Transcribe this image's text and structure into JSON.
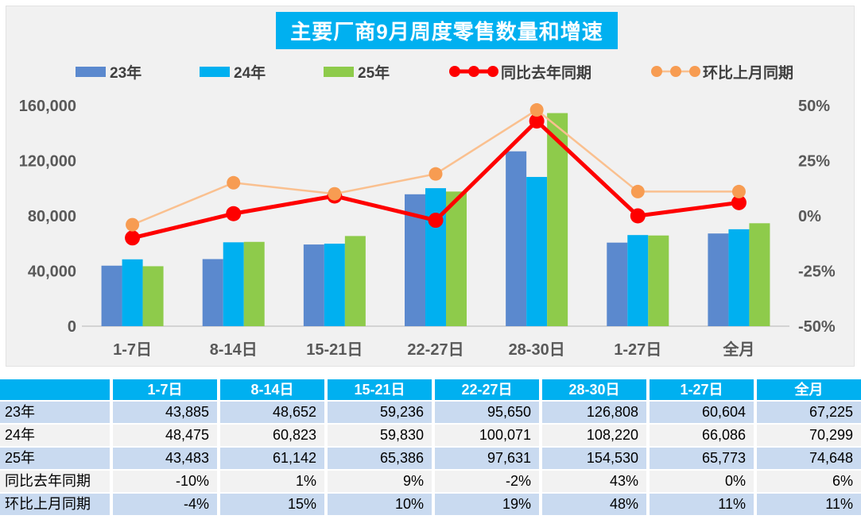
{
  "chart": {
    "title": "主要厂商9月周度零售数量和增速",
    "panel_bg": "#f1f1f1",
    "title_bg": "#00b0f0"
  },
  "chart_data": {
    "type": "bar",
    "title": "主要厂商9月周度零售数量和增速",
    "categories": [
      "1-7日",
      "8-14日",
      "15-21日",
      "22-27日",
      "28-30日",
      "1-27日",
      "全月"
    ],
    "bar_series": [
      {
        "name": "23年",
        "color": "#5b89ce",
        "values": [
          43885,
          48652,
          59236,
          95650,
          126808,
          60604,
          67225
        ]
      },
      {
        "name": "24年",
        "color": "#00b0f0",
        "values": [
          48475,
          60823,
          59830,
          100071,
          108220,
          66086,
          70299
        ]
      },
      {
        "name": "25年",
        "color": "#8ecb4b",
        "values": [
          43483,
          61142,
          65386,
          97631,
          154530,
          65773,
          74648
        ]
      }
    ],
    "line_series": [
      {
        "name": "同比去年同期",
        "color": "#fe0000",
        "marker_color": "#fe0000",
        "width": 5,
        "marker_r": 9.5,
        "values_pct": [
          -10,
          1,
          9,
          -2,
          43,
          0,
          6
        ]
      },
      {
        "name": "环比上月同期",
        "color": "#fac08f",
        "marker_color": "#f79c52",
        "width": 2.5,
        "marker_r": 8.5,
        "values_pct": [
          -4,
          15,
          10,
          19,
          48,
          11,
          11
        ]
      }
    ],
    "left_axis": {
      "max": 160000,
      "ticks": [
        0,
        40000,
        80000,
        120000,
        160000
      ],
      "labels": [
        "0",
        "40,000",
        "80,000",
        "120,000",
        "160,000"
      ]
    },
    "right_axis": {
      "ticks": [
        -50,
        -25,
        0,
        25,
        50
      ],
      "labels": [
        "-50%",
        "-25%",
        "0%",
        "25%",
        "50%"
      ]
    },
    "grid": false,
    "legend_position": "top"
  },
  "table": {
    "header": [
      "",
      "1-7日",
      "8-14日",
      "15-21日",
      "22-27日",
      "28-30日",
      "1-27日",
      "全月"
    ],
    "rows": [
      {
        "label": "23年",
        "values": [
          "43,885",
          "48,652",
          "59,236",
          "95,650",
          "126,808",
          "60,604",
          "67,225"
        ]
      },
      {
        "label": "24年",
        "values": [
          "48,475",
          "60,823",
          "59,830",
          "100,071",
          "108,220",
          "66,086",
          "70,299"
        ]
      },
      {
        "label": "25年",
        "values": [
          "43,483",
          "61,142",
          "65,386",
          "97,631",
          "154,530",
          "65,773",
          "74,648"
        ]
      },
      {
        "label": "同比去年同期",
        "values": [
          "-10%",
          "1%",
          "9%",
          "-2%",
          "43%",
          "0%",
          "6%"
        ]
      },
      {
        "label": "环比上月同期",
        "values": [
          "-4%",
          "15%",
          "10%",
          "19%",
          "48%",
          "11%",
          "11%"
        ]
      }
    ]
  }
}
